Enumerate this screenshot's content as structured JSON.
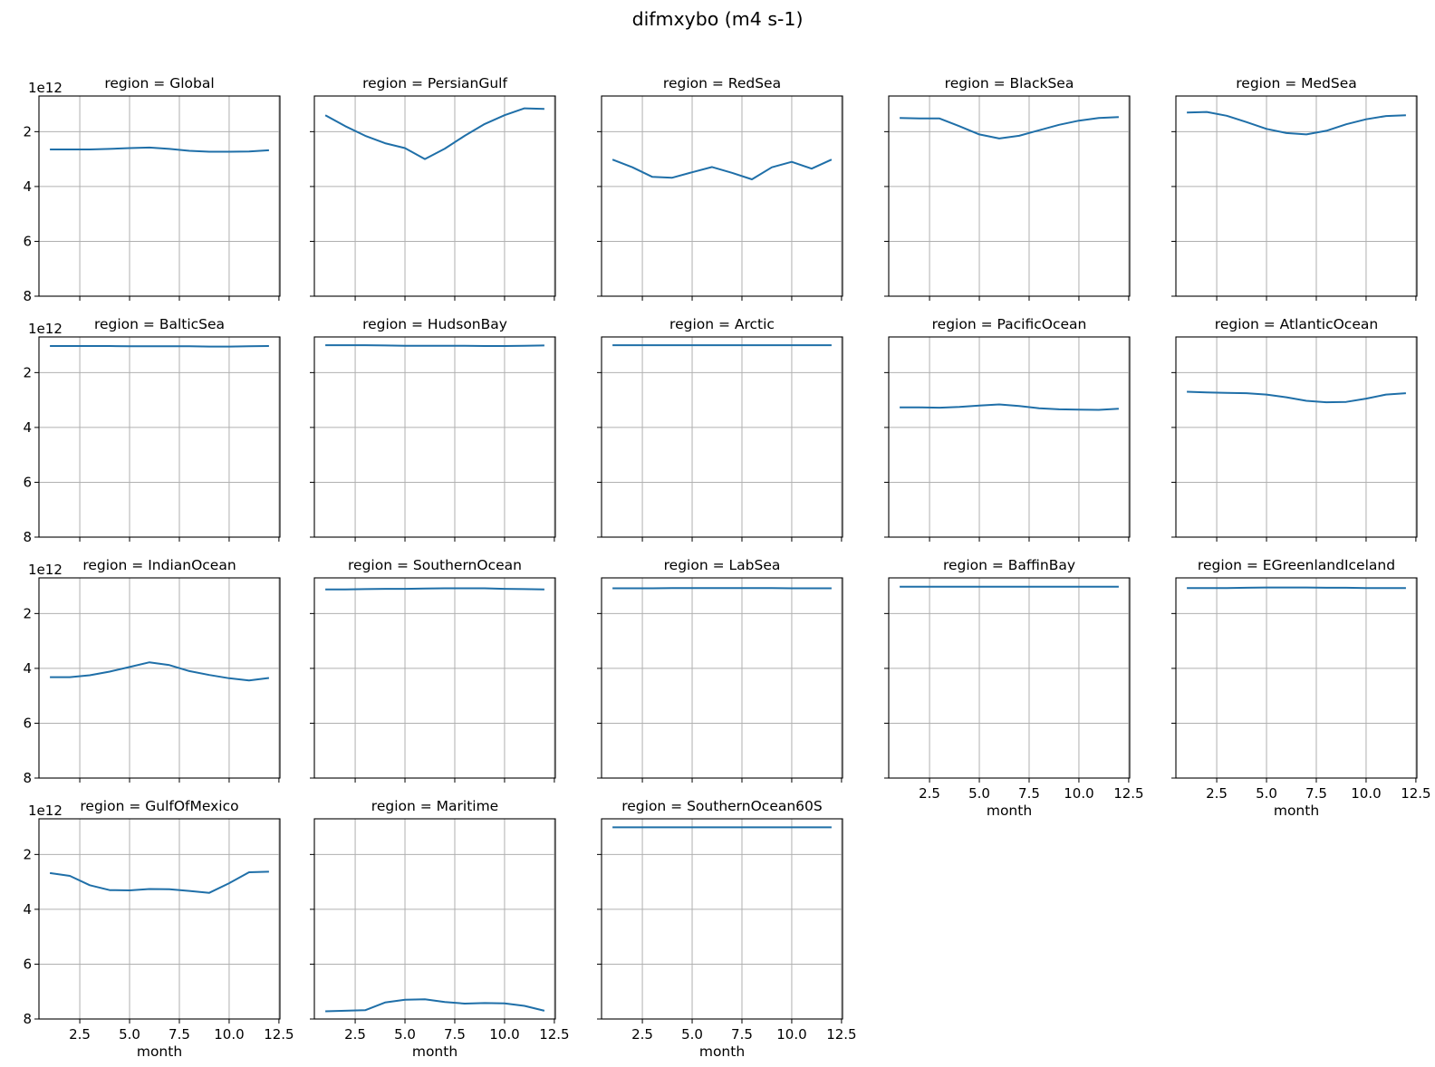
{
  "figure": {
    "suptitle": "difmxybo (m4 s-1)",
    "line_color": "#1f6fa8",
    "grid_color": "#b0b0b0"
  },
  "chart_data": {
    "type": "line",
    "layout": "small-multiples",
    "ncols": 5,
    "xlabel": "month",
    "x": [
      1,
      2,
      3,
      4,
      5,
      6,
      7,
      8,
      9,
      10,
      11,
      12
    ],
    "xlim": [
      0.45,
      12.55
    ],
    "ylim": [
      8,
      0.7
    ],
    "y_inverted": true,
    "y_offset_label": "1e12",
    "xticks": [
      2.5,
      5.0,
      7.5,
      10.0,
      12.5
    ],
    "xtick_labels": [
      "2.5",
      "5.0",
      "7.5",
      "10.0",
      "12.5"
    ],
    "yticks": [
      2,
      4,
      6,
      8
    ],
    "ytick_labels": [
      "2",
      "4",
      "6",
      "8"
    ],
    "grid": true,
    "panels": [
      {
        "title": "region = Global",
        "values": [
          2.65,
          2.65,
          2.65,
          2.63,
          2.6,
          2.58,
          2.63,
          2.7,
          2.73,
          2.73,
          2.72,
          2.68
        ]
      },
      {
        "title": "region = PersianGulf",
        "values": [
          1.4,
          1.8,
          2.15,
          2.42,
          2.6,
          3.0,
          2.62,
          2.15,
          1.72,
          1.4,
          1.15,
          1.17
        ]
      },
      {
        "title": "region = RedSea",
        "values": [
          3.02,
          3.3,
          3.65,
          3.68,
          3.48,
          3.29,
          3.5,
          3.74,
          3.3,
          3.1,
          3.35,
          3.02
        ]
      },
      {
        "title": "region = BlackSea",
        "values": [
          1.5,
          1.52,
          1.52,
          1.8,
          2.1,
          2.25,
          2.15,
          1.95,
          1.75,
          1.6,
          1.5,
          1.47
        ]
      },
      {
        "title": "region = MedSea",
        "values": [
          1.3,
          1.28,
          1.42,
          1.65,
          1.9,
          2.05,
          2.1,
          1.97,
          1.73,
          1.55,
          1.43,
          1.4
        ]
      },
      {
        "title": "region = BalticSea",
        "values": [
          1.03,
          1.03,
          1.03,
          1.03,
          1.04,
          1.04,
          1.04,
          1.04,
          1.05,
          1.05,
          1.04,
          1.03
        ]
      },
      {
        "title": "region = HudsonBay",
        "values": [
          1.0,
          1.0,
          1.0,
          1.01,
          1.02,
          1.02,
          1.02,
          1.02,
          1.03,
          1.03,
          1.02,
          1.01
        ]
      },
      {
        "title": "region = Arctic",
        "values": [
          1.0,
          1.0,
          1.0,
          1.0,
          1.0,
          1.0,
          1.0,
          1.0,
          1.0,
          1.0,
          1.0,
          1.0
        ]
      },
      {
        "title": "region = PacificOcean",
        "values": [
          3.27,
          3.27,
          3.28,
          3.25,
          3.2,
          3.16,
          3.22,
          3.3,
          3.34,
          3.35,
          3.36,
          3.32
        ]
      },
      {
        "title": "region = AtlanticOcean",
        "values": [
          2.7,
          2.72,
          2.74,
          2.75,
          2.8,
          2.9,
          3.03,
          3.08,
          3.07,
          2.95,
          2.8,
          2.75
        ]
      },
      {
        "title": "region = IndianOcean",
        "values": [
          4.32,
          4.32,
          4.25,
          4.12,
          3.95,
          3.78,
          3.88,
          4.1,
          4.24,
          4.36,
          4.44,
          4.35
        ]
      },
      {
        "title": "region = SouthernOcean",
        "values": [
          1.12,
          1.12,
          1.11,
          1.1,
          1.1,
          1.09,
          1.08,
          1.08,
          1.08,
          1.1,
          1.11,
          1.12
        ]
      },
      {
        "title": "region = LabSea",
        "values": [
          1.08,
          1.08,
          1.08,
          1.07,
          1.07,
          1.07,
          1.07,
          1.07,
          1.07,
          1.08,
          1.08,
          1.08
        ]
      },
      {
        "title": "region = BaffinBay",
        "values": [
          1.02,
          1.02,
          1.02,
          1.02,
          1.02,
          1.02,
          1.02,
          1.02,
          1.02,
          1.02,
          1.02,
          1.02
        ]
      },
      {
        "title": "region = EGreenlandIceland",
        "values": [
          1.07,
          1.07,
          1.07,
          1.06,
          1.05,
          1.05,
          1.05,
          1.06,
          1.06,
          1.07,
          1.07,
          1.07
        ]
      },
      {
        "title": "region = GulfOfMexico",
        "values": [
          2.68,
          2.78,
          3.12,
          3.3,
          3.31,
          3.26,
          3.27,
          3.33,
          3.4,
          3.05,
          2.65,
          2.63
        ]
      },
      {
        "title": "region = Maritime",
        "values": [
          7.72,
          7.7,
          7.68,
          7.4,
          7.3,
          7.28,
          7.38,
          7.44,
          7.42,
          7.43,
          7.52,
          7.7
        ]
      },
      {
        "title": "region = SouthernOcean60S",
        "values": [
          1.01,
          1.01,
          1.01,
          1.01,
          1.01,
          1.01,
          1.01,
          1.01,
          1.01,
          1.01,
          1.01,
          1.01
        ]
      }
    ]
  }
}
